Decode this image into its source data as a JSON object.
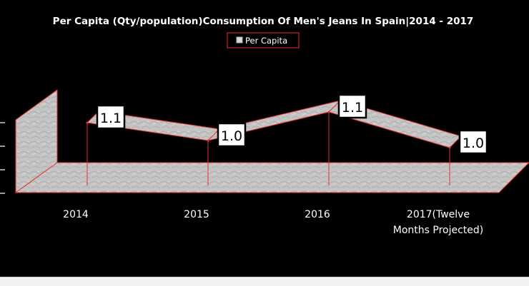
{
  "chart_data": {
    "type": "line",
    "title": "Per Capita (Qty/population)Consumption Of Men's Jeans In Spain|2014 - 2017",
    "categories": [
      "2014",
      "2015",
      "2016",
      "2017(Twelve Months Projected)"
    ],
    "category_lines": [
      [
        "2014"
      ],
      [
        "2015"
      ],
      [
        "2016"
      ],
      [
        "2017(Twelve",
        "Months Projected)"
      ]
    ],
    "series": [
      {
        "name": "Per Capita",
        "values": [
          1.1,
          1.0,
          1.1,
          1.0
        ],
        "data_labels": [
          "1.1",
          "1.0",
          "1.1",
          "1.0"
        ]
      }
    ],
    "legend": "top-center",
    "style": "3d-line",
    "colors": {
      "background": "#000000",
      "text": "#ffffff",
      "surface": "#c9c9c9",
      "edge": "#e3342f"
    }
  }
}
